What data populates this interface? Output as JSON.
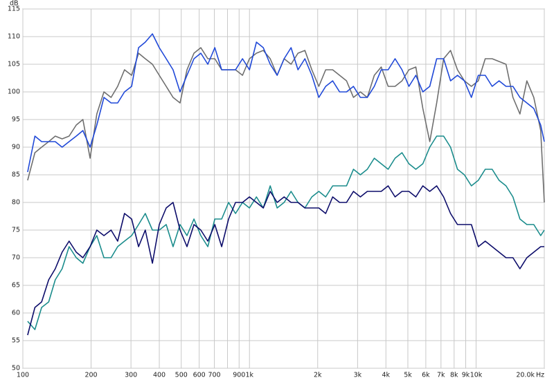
{
  "chart_data": {
    "type": "line",
    "x_scale": "log",
    "y_unit": "dB",
    "x_unit": "Hz",
    "grid": true,
    "xlim": [
      100,
      20000
    ],
    "ylim": [
      50,
      115
    ],
    "yticks": [
      50,
      55,
      60,
      65,
      70,
      75,
      80,
      85,
      90,
      95,
      100,
      105,
      110,
      115
    ],
    "xticks": [
      100,
      200,
      300,
      400,
      500,
      600,
      700,
      {
        "value": 800,
        "label": null
      },
      900,
      {
        "value": 1000,
        "label": "1k"
      },
      {
        "value": 2000,
        "label": "2k"
      },
      {
        "value": 3000,
        "label": "3k"
      },
      {
        "value": 4000,
        "label": "4k"
      },
      {
        "value": 5000,
        "label": "5k"
      },
      {
        "value": 6000,
        "label": "6k"
      },
      {
        "value": 7000,
        "label": "7k"
      },
      {
        "value": 8000,
        "label": "8k"
      },
      {
        "value": 9000,
        "label": "9k"
      },
      {
        "value": 10000,
        "label": "10k"
      },
      {
        "value": 20000,
        "label": "20.0k"
      }
    ],
    "x": [
      105,
      113,
      121,
      130,
      139,
      149,
      160,
      172,
      184,
      198,
      212,
      228,
      245,
      262,
      281,
      302,
      324,
      347,
      373,
      400,
      429,
      460,
      494,
      530,
      569,
      610,
      655,
      703,
      754,
      809,
      868,
      932,
      1000,
      1073,
      1151,
      1235,
      1325,
      1422,
      1526,
      1637,
      1757,
      1885,
      2023,
      2170,
      2329,
      2499,
      2681,
      2877,
      3087,
      3312,
      3554,
      3814,
      4092,
      4391,
      4711,
      5055,
      5424,
      5820,
      6245,
      6701,
      7190,
      7715,
      8278,
      8882,
      9531,
      10227,
      10973,
      11774,
      12634,
      13556,
      14545,
      15607,
      16746,
      17969,
      19280,
      20000
    ],
    "series": [
      {
        "color": "#6e6e6e",
        "values": [
          84,
          89,
          90,
          91,
          92,
          91.5,
          92,
          94,
          95,
          88,
          96,
          100,
          99,
          101,
          104,
          103,
          107,
          106,
          105,
          103,
          101,
          99,
          98,
          104,
          107,
          108,
          106,
          106,
          104,
          104,
          104,
          103,
          106,
          107,
          107.5,
          106,
          103,
          106,
          105,
          107,
          107.5,
          104,
          101,
          104,
          104,
          103,
          102,
          99,
          100,
          99,
          103,
          104.5,
          101,
          101,
          102,
          104,
          104.5,
          97,
          91,
          98,
          106,
          107.5,
          104,
          102,
          101,
          102,
          106,
          106,
          105.5,
          105,
          99,
          96,
          102,
          99,
          93,
          80
        ]
      },
      {
        "color": "#1f48d8",
        "values": [
          85.5,
          92,
          91,
          91,
          91,
          90,
          91,
          92,
          93,
          90,
          94,
          99,
          98,
          98,
          100,
          101,
          108,
          109,
          110.5,
          108,
          106,
          104,
          100,
          103,
          106,
          107,
          105,
          108,
          104,
          104,
          104,
          106,
          104,
          109,
          108,
          105,
          103,
          106,
          108,
          104,
          106,
          103,
          99,
          101,
          102,
          100,
          100,
          101,
          99,
          99,
          101,
          104,
          104,
          106,
          104,
          101,
          103,
          100,
          101,
          106,
          106,
          102,
          103,
          102,
          99,
          103,
          103,
          101,
          102,
          101,
          101,
          99,
          98,
          97,
          94,
          91
        ]
      },
      {
        "color": "#1a8c8c",
        "values": [
          58.5,
          57,
          61,
          62,
          66,
          68,
          72,
          70,
          69,
          72,
          74,
          70,
          70,
          72,
          73,
          74,
          76,
          78,
          75,
          75,
          76,
          72,
          76,
          74,
          77,
          74,
          72,
          77,
          77,
          80,
          78,
          80,
          79,
          81,
          79,
          83,
          79,
          80,
          82,
          80,
          79,
          81,
          82,
          81,
          83,
          83,
          83,
          86,
          85,
          86,
          88,
          87,
          86,
          88,
          89,
          87,
          86,
          87,
          90,
          92,
          92,
          90,
          86,
          85,
          83,
          84,
          86,
          86,
          84,
          83,
          81,
          77,
          76,
          76,
          74,
          75
        ]
      },
      {
        "color": "#0c0c6a",
        "values": [
          56,
          61,
          62,
          66,
          68,
          71,
          73,
          71,
          70,
          72,
          75,
          74,
          75,
          73,
          78,
          77,
          72,
          75,
          69,
          76,
          79,
          80,
          75,
          72,
          76,
          75,
          73,
          76,
          72,
          77,
          80,
          80,
          81,
          80,
          79,
          82,
          80,
          81,
          80,
          80,
          79,
          79,
          79,
          78,
          81,
          80,
          80,
          82,
          81,
          82,
          82,
          82,
          83,
          81,
          82,
          82,
          81,
          83,
          82,
          83,
          81,
          78,
          76,
          76,
          76,
          72,
          73,
          72,
          71,
          70,
          70,
          68,
          70,
          71,
          72,
          72
        ]
      }
    ]
  }
}
